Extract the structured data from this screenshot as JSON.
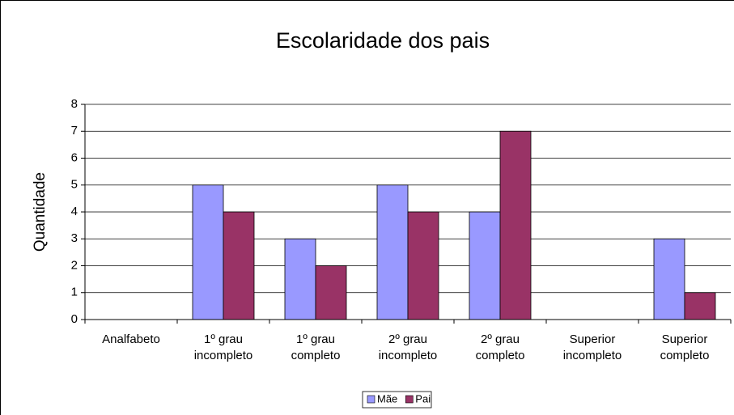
{
  "chart_data": {
    "type": "bar",
    "title": "Escolaridade dos pais",
    "y_label": "Quantidade",
    "categories": [
      "Analfabeto",
      "1º grau incompleto",
      "1º grau completo",
      "2º grau incompleto",
      "2º grau completo",
      "Superior incompleto",
      "Superior completo"
    ],
    "series": [
      {
        "name": "Mãe",
        "color": "#9999ff",
        "values": [
          0,
          5,
          3,
          5,
          4,
          0,
          3
        ]
      },
      {
        "name": "Pai",
        "color": "#993366",
        "values": [
          0,
          4,
          2,
          4,
          7,
          0,
          1
        ]
      }
    ],
    "ylim": [
      0,
      8
    ],
    "yticks": [
      0,
      1,
      2,
      3,
      4,
      5,
      6,
      7,
      8
    ],
    "grid": true,
    "legend": "bottom"
  }
}
